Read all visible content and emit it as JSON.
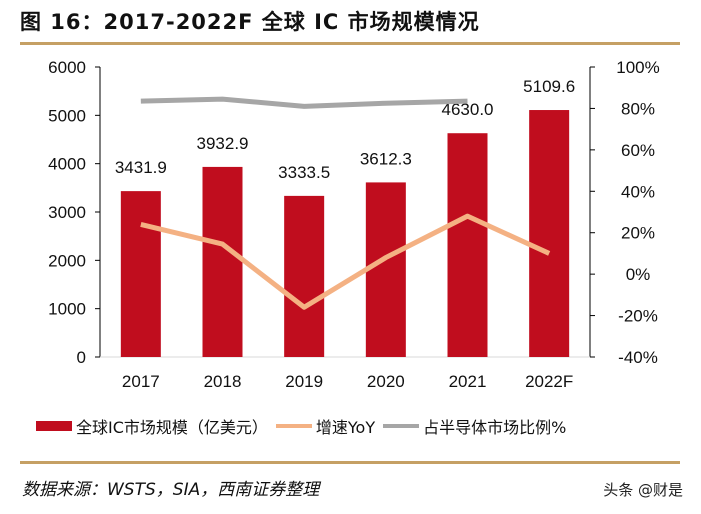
{
  "title": "图 16：2017-2022F 全球 IC 市场规模情况",
  "source": "数据来源：WSTS，SIA，西南证券整理",
  "watermark": "头条 @财是",
  "colors": {
    "bar": "#c00d1e",
    "yoy": "#f4b183",
    "share": "#a6a6a6",
    "rule": "#c5a064"
  },
  "chart_data": {
    "type": "bar+line",
    "categories": [
      "2017",
      "2018",
      "2019",
      "2020",
      "2021",
      "2022F"
    ],
    "left_axis": {
      "ylim": [
        0,
        6000
      ],
      "ticks": [
        "0",
        "1000",
        "2000",
        "3000",
        "4000",
        "5000",
        "6000"
      ]
    },
    "right_axis": {
      "ylim": [
        -40,
        100
      ],
      "ticks": [
        "-40%",
        "-20%",
        "0%",
        "20%",
        "40%",
        "60%",
        "80%",
        "100%"
      ]
    },
    "series": [
      {
        "name": "全球IC市场规模（亿美元）",
        "type": "bar",
        "axis": "left",
        "values": [
          3431.9,
          3932.9,
          3333.5,
          3612.3,
          4630.0,
          5109.6
        ],
        "labels": [
          "3431.9",
          "3932.9",
          "3333.5",
          "3612.3",
          "4630.0",
          "5109.6"
        ]
      },
      {
        "name": "增速YoY",
        "type": "line",
        "axis": "right",
        "values": [
          24,
          14.5,
          -16,
          8,
          28,
          10
        ]
      },
      {
        "name": "占半导体市场比例%",
        "type": "line",
        "axis": "right",
        "values": [
          83.5,
          84.5,
          81,
          82.5,
          83.5,
          null
        ]
      }
    ],
    "grid": false,
    "legend": "bottom"
  }
}
